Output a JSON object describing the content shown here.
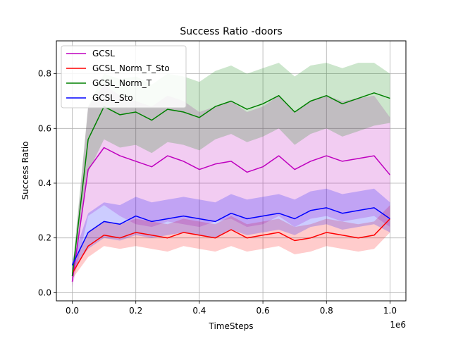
{
  "chart_data": {
    "type": "line",
    "title": "Success Ratio -doors",
    "xlabel": "TimeSteps",
    "ylabel": "Success Ratio",
    "x_offset_label": "1e6",
    "xlim": [
      -0.05,
      1.05
    ],
    "ylim": [
      -0.03,
      0.92
    ],
    "x_ticks": [
      0.0,
      0.2,
      0.4,
      0.6,
      0.8,
      1.0
    ],
    "x_tick_labels": [
      "0.0",
      "0.2",
      "0.4",
      "0.6",
      "0.8",
      "1.0"
    ],
    "y_ticks": [
      0.0,
      0.2,
      0.4,
      0.6,
      0.8
    ],
    "y_tick_labels": [
      "0.0",
      "0.2",
      "0.4",
      "0.6",
      "0.8"
    ],
    "grid": true,
    "legend_position": "top-left",
    "x": [
      0.0,
      0.05,
      0.1,
      0.15,
      0.2,
      0.25,
      0.3,
      0.35,
      0.4,
      0.45,
      0.5,
      0.55,
      0.6,
      0.65,
      0.7,
      0.75,
      0.8,
      0.85,
      0.9,
      0.95,
      1.0
    ],
    "series": [
      {
        "name": "GCSL",
        "color": "#bf00bf",
        "values": [
          0.04,
          0.45,
          0.53,
          0.5,
          0.48,
          0.46,
          0.5,
          0.48,
          0.45,
          0.47,
          0.48,
          0.44,
          0.46,
          0.5,
          0.45,
          0.48,
          0.5,
          0.48,
          0.49,
          0.5,
          0.43
        ],
        "lower": [
          0.02,
          0.28,
          0.32,
          0.28,
          0.25,
          0.24,
          0.26,
          0.25,
          0.24,
          0.26,
          0.27,
          0.24,
          0.25,
          0.28,
          0.24,
          0.27,
          0.28,
          0.26,
          0.27,
          0.28,
          0.24
        ],
        "upper": [
          0.06,
          0.68,
          0.76,
          0.72,
          0.7,
          0.68,
          0.72,
          0.7,
          0.66,
          0.68,
          0.7,
          0.66,
          0.68,
          0.72,
          0.66,
          0.7,
          0.72,
          0.7,
          0.71,
          0.72,
          0.64
        ]
      },
      {
        "name": "GCSL_Norm_T_Sto",
        "color": "#ff0000",
        "values": [
          0.07,
          0.17,
          0.21,
          0.2,
          0.22,
          0.21,
          0.2,
          0.22,
          0.21,
          0.2,
          0.23,
          0.2,
          0.21,
          0.22,
          0.19,
          0.2,
          0.22,
          0.21,
          0.2,
          0.21,
          0.27
        ],
        "lower": [
          0.05,
          0.13,
          0.17,
          0.16,
          0.17,
          0.16,
          0.15,
          0.17,
          0.16,
          0.15,
          0.17,
          0.15,
          0.16,
          0.17,
          0.14,
          0.15,
          0.17,
          0.16,
          0.15,
          0.16,
          0.22
        ],
        "upper": [
          0.09,
          0.22,
          0.26,
          0.25,
          0.27,
          0.26,
          0.25,
          0.27,
          0.26,
          0.25,
          0.28,
          0.25,
          0.26,
          0.27,
          0.24,
          0.25,
          0.27,
          0.26,
          0.25,
          0.26,
          0.32
        ]
      },
      {
        "name": "GCSL_Norm_T",
        "color": "#008000",
        "values": [
          0.06,
          0.56,
          0.68,
          0.65,
          0.66,
          0.63,
          0.67,
          0.66,
          0.64,
          0.68,
          0.7,
          0.67,
          0.69,
          0.72,
          0.66,
          0.7,
          0.72,
          0.69,
          0.71,
          0.73,
          0.71
        ],
        "lower": [
          0.04,
          0.44,
          0.56,
          0.53,
          0.54,
          0.51,
          0.55,
          0.54,
          0.52,
          0.56,
          0.58,
          0.55,
          0.57,
          0.6,
          0.54,
          0.58,
          0.6,
          0.57,
          0.59,
          0.61,
          0.62
        ],
        "upper": [
          0.08,
          0.68,
          0.8,
          0.78,
          0.79,
          0.76,
          0.8,
          0.79,
          0.77,
          0.81,
          0.83,
          0.8,
          0.82,
          0.84,
          0.79,
          0.83,
          0.84,
          0.82,
          0.84,
          0.84,
          0.8
        ]
      },
      {
        "name": "GCSL_Sto",
        "color": "#0000ff",
        "values": [
          0.1,
          0.22,
          0.26,
          0.25,
          0.28,
          0.26,
          0.27,
          0.28,
          0.27,
          0.26,
          0.29,
          0.27,
          0.28,
          0.29,
          0.27,
          0.3,
          0.31,
          0.29,
          0.3,
          0.31,
          0.27
        ],
        "lower": [
          0.08,
          0.16,
          0.2,
          0.19,
          0.21,
          0.2,
          0.21,
          0.22,
          0.21,
          0.2,
          0.23,
          0.21,
          0.22,
          0.23,
          0.21,
          0.24,
          0.25,
          0.23,
          0.24,
          0.25,
          0.22
        ],
        "upper": [
          0.12,
          0.29,
          0.33,
          0.32,
          0.35,
          0.33,
          0.34,
          0.35,
          0.34,
          0.33,
          0.36,
          0.34,
          0.35,
          0.36,
          0.34,
          0.37,
          0.38,
          0.36,
          0.37,
          0.38,
          0.33
        ]
      }
    ]
  }
}
